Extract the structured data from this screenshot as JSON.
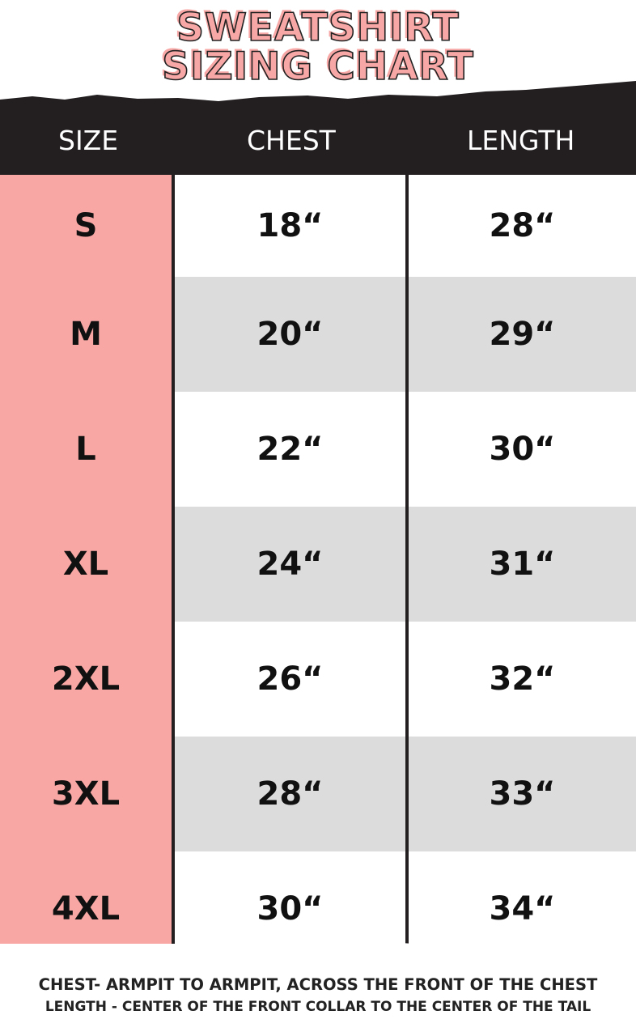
{
  "title": {
    "line1": "SWEATSHIRT",
    "line2": "SIZING CHART"
  },
  "colors": {
    "pink": "#f8a7a4",
    "dark": "#231f20",
    "gray": "#dcdcdc"
  },
  "table": {
    "headers": [
      "SIZE",
      "CHEST",
      "LENGTH"
    ],
    "rows": [
      [
        "S",
        "18“",
        "28“"
      ],
      [
        "M",
        "20“",
        "29“"
      ],
      [
        "L",
        "22“",
        "30“"
      ],
      [
        "XL",
        "24“",
        "31“"
      ],
      [
        "2XL",
        "26“",
        "32“"
      ],
      [
        "3XL",
        "28“",
        "33“"
      ],
      [
        "4XL",
        "30“",
        "34“"
      ]
    ]
  },
  "footer": {
    "chest_note": "CHEST- ARMPIT TO ARMPIT, ACROSS THE FRONT OF THE CHEST",
    "length_note": "LENGTH - CENTER OF THE FRONT COLLAR TO THE CENTER OF THE TAIL"
  }
}
